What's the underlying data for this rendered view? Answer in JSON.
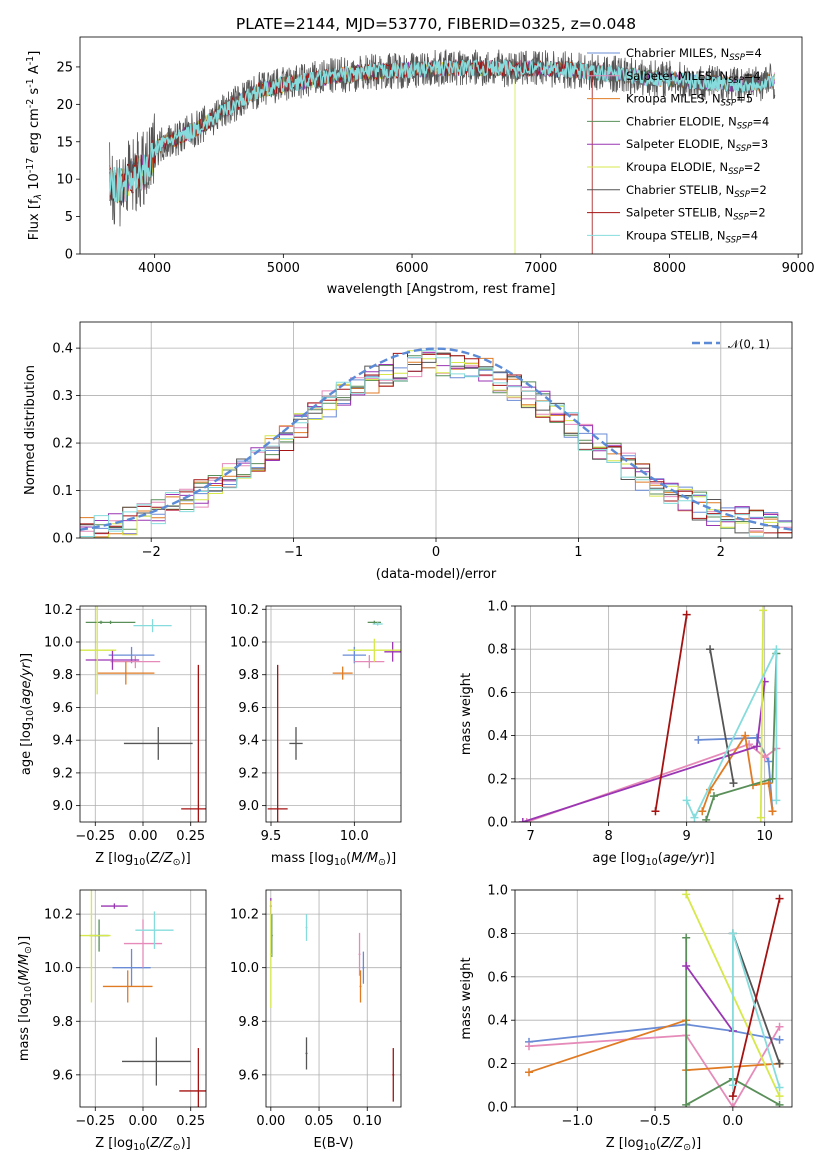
{
  "figure": {
    "title": "PLATE=2144, MJD=53770, FIBERID=0325, z=0.048",
    "colors": {
      "Chabrier MILES": "#6a8cd6",
      "Salpeter MILES": "#e68bb9",
      "Kroupa MILES": "#e07b24",
      "Chabrier ELODIE": "#5a8f5a",
      "Salpeter ELODIE": "#9a36b3",
      "Kroupa ELODIE": "#d6e84a",
      "Chabrier STELIB": "#555555",
      "Salpeter STELIB": "#a51212",
      "Kroupa STELIB": "#86dcdc"
    }
  },
  "chart_data": [
    {
      "id": "spectrum",
      "type": "line",
      "title": "PLATE=2144, MJD=53770, FIBERID=0325, z=0.048",
      "xlabel": "wavelength [Angstrom, rest frame]",
      "ylabel": "Flux [f_λ 10^-17 erg cm^-2 s^-1 A^-1]",
      "xlim": [
        3420,
        9030
      ],
      "ylim": [
        0,
        29
      ],
      "xticks": [
        4000,
        5000,
        6000,
        7000,
        8000,
        9000
      ],
      "yticks": [
        0,
        5,
        10,
        15,
        20,
        25
      ],
      "legend_position": "right",
      "legend": [
        {
          "name": "Chabrier MILES",
          "base": "Chabrier MILES, N",
          "sub": "SSP",
          "suffix": "=4"
        },
        {
          "name": "Salpeter MILES",
          "base": "Salpeter MILES, N",
          "sub": "SSP",
          "suffix": "=4"
        },
        {
          "name": "Kroupa MILES",
          "base": "Kroupa MILES, N",
          "sub": "SSP",
          "suffix": "=5"
        },
        {
          "name": "Chabrier ELODIE",
          "base": "Chabrier ELODIE, N",
          "sub": "SSP",
          "suffix": "=4"
        },
        {
          "name": "Salpeter ELODIE",
          "base": "Salpeter ELODIE, N",
          "sub": "SSP",
          "suffix": "=3"
        },
        {
          "name": "Kroupa ELODIE",
          "base": "Kroupa ELODIE, N",
          "sub": "SSP",
          "suffix": "=2"
        },
        {
          "name": "Chabrier STELIB",
          "base": "Chabrier STELIB, N",
          "sub": "SSP",
          "suffix": "=2"
        },
        {
          "name": "Salpeter STELIB",
          "base": "Salpeter STELIB, N",
          "sub": "SSP",
          "suffix": "=2"
        },
        {
          "name": "Kroupa STELIB",
          "base": "Kroupa STELIB, N",
          "sub": "SSP",
          "suffix": "=4"
        }
      ],
      "continuum": [
        [
          3650,
          9.5
        ],
        [
          3750,
          9.0
        ],
        [
          3850,
          10.8
        ],
        [
          3950,
          11.0
        ],
        [
          4000,
          14.0
        ],
        [
          4100,
          15.2
        ],
        [
          4200,
          15.6
        ],
        [
          4300,
          16.5
        ],
        [
          4400,
          17.5
        ],
        [
          4600,
          19.8
        ],
        [
          4800,
          21.8
        ],
        [
          5000,
          22.6
        ],
        [
          5200,
          23.2
        ],
        [
          5400,
          23.8
        ],
        [
          5600,
          24.2
        ],
        [
          5800,
          24.5
        ],
        [
          6000,
          24.6
        ],
        [
          6200,
          24.8
        ],
        [
          6400,
          24.9
        ],
        [
          6600,
          24.8
        ],
        [
          6800,
          24.8
        ],
        [
          7000,
          24.8
        ],
        [
          7200,
          24.6
        ],
        [
          7400,
          24.3
        ],
        [
          7600,
          24.0
        ],
        [
          7800,
          23.6
        ],
        [
          8000,
          23.4
        ],
        [
          8200,
          23.0
        ],
        [
          8400,
          22.8
        ],
        [
          8600,
          22.6
        ],
        [
          8800,
          23.2
        ]
      ],
      "wavelength_start": 3650,
      "wavelength_end": 8820,
      "truncations": [
        {
          "series": "Salpeter STELIB",
          "end": 7400
        },
        {
          "series": "Kroupa ELODIE",
          "end": 6800
        }
      ]
    },
    {
      "id": "residuals",
      "type": "histogram",
      "xlabel": "(data-model)/error",
      "ylabel": "Normed distribution",
      "xlim": [
        -2.5,
        2.5
      ],
      "ylim": [
        0,
        0.455
      ],
      "xticks": [
        -2,
        -1,
        0,
        1,
        2
      ],
      "yticks": [
        0.0,
        0.1,
        0.2,
        0.3,
        0.4
      ],
      "grid": true,
      "legend_position": "top-right",
      "legend_label": "𝒩(0, 1)",
      "reference_curve": "normal pdf, mean 0, sigma 1",
      "bin_width": 0.1
    },
    {
      "id": "age_vs_Z",
      "type": "errorbar",
      "xlabel": "Z [log10(Z/Z⊙)]",
      "ylabel": "age [log10(age/yr)]",
      "xlim": [
        -0.33,
        0.33
      ],
      "ylim": [
        8.9,
        10.22
      ],
      "xticks": [
        -0.25,
        0.0,
        0.25
      ],
      "yticks": [
        9.0,
        9.2,
        9.4,
        9.6,
        9.8,
        10.0,
        10.2
      ],
      "grid": true,
      "points": [
        {
          "series": "Chabrier MILES",
          "x": -0.06,
          "xerr": 0.12,
          "y": 9.92,
          "yerr": 0.05
        },
        {
          "series": "Salpeter MILES",
          "x": -0.04,
          "xerr": 0.13,
          "y": 9.88,
          "yerr": 0.04
        },
        {
          "series": "Kroupa MILES",
          "x": -0.09,
          "xerr": 0.15,
          "y": 9.81,
          "yerr": 0.07
        },
        {
          "series": "Chabrier ELODIE",
          "x": -0.17,
          "xerr": 0.13,
          "y": 10.12,
          "yerr": 0.01
        },
        {
          "series": "Salpeter ELODIE",
          "x": -0.16,
          "xerr": 0.14,
          "y": 9.89,
          "yerr": 0.06
        },
        {
          "series": "Kroupa ELODIE",
          "x": -0.24,
          "xerr": 0.1,
          "y": 9.95,
          "yerr": 0.27
        },
        {
          "series": "Chabrier STELIB",
          "x": 0.08,
          "xerr": 0.18,
          "y": 9.38,
          "yerr": 0.1
        },
        {
          "series": "Salpeter STELIB",
          "x": 0.29,
          "xerr": 0.09,
          "y": 8.98,
          "yerr": 0.88
        },
        {
          "series": "Kroupa STELIB",
          "x": 0.05,
          "xerr": 0.1,
          "y": 10.1,
          "yerr": 0.04
        },
        {
          "series": "Chabrier ELODIE",
          "x": -0.22,
          "xerr": 0.01,
          "y": 10.12,
          "yerr": 0.01
        }
      ]
    },
    {
      "id": "age_vs_mass",
      "type": "errorbar",
      "xlabel": "mass [log10(M/M⊙)]",
      "ylabel": "",
      "xlim": [
        9.47,
        10.28
      ],
      "ylim": [
        8.9,
        10.22
      ],
      "xticks": [
        9.5,
        10.0
      ],
      "yticks": [
        9.0,
        9.2,
        9.4,
        9.6,
        9.8,
        10.0,
        10.2
      ],
      "grid": true,
      "points": [
        {
          "series": "Chabrier MILES",
          "x": 10.0,
          "xerr": 0.07,
          "y": 9.92,
          "yerr": 0.05
        },
        {
          "series": "Salpeter MILES",
          "x": 10.09,
          "xerr": 0.09,
          "y": 9.88,
          "yerr": 0.04
        },
        {
          "series": "Kroupa MILES",
          "x": 9.93,
          "xerr": 0.06,
          "y": 9.81,
          "yerr": 0.04
        },
        {
          "series": "Chabrier ELODIE",
          "x": 10.12,
          "xerr": 0.04,
          "y": 10.12,
          "yerr": 0.01
        },
        {
          "series": "Salpeter ELODIE",
          "x": 10.23,
          "xerr": 0.05,
          "y": 9.94,
          "yerr": 0.06
        },
        {
          "series": "Kroupa ELODIE",
          "x": 10.12,
          "xerr": 0.16,
          "y": 9.95,
          "yerr": 0.07
        },
        {
          "series": "Chabrier STELIB",
          "x": 9.65,
          "xerr": 0.04,
          "y": 9.38,
          "yerr": 0.1
        },
        {
          "series": "Salpeter STELIB",
          "x": 9.54,
          "xerr": 0.06,
          "y": 8.98,
          "yerr": 0.88
        },
        {
          "series": "Kroupa STELIB",
          "x": 10.14,
          "xerr": 0.03,
          "y": 10.11,
          "yerr": 0.01
        }
      ]
    },
    {
      "id": "weight_vs_age",
      "type": "line",
      "xlabel": "age [log10(age/yr)]",
      "ylabel": "mass weight",
      "xlim": [
        6.8,
        10.35
      ],
      "ylim": [
        0,
        1.0
      ],
      "xticks": [
        7,
        8,
        9,
        10
      ],
      "yticks": [
        0.0,
        0.2,
        0.4,
        0.6,
        0.8,
        1.0
      ],
      "grid": true,
      "series": [
        {
          "name": "Chabrier MILES",
          "points": [
            [
              9.15,
              0.38
            ],
            [
              9.9,
              0.39
            ],
            [
              10.05,
              0.28
            ],
            [
              10.1,
              0.05
            ]
          ]
        },
        {
          "name": "Salpeter MILES",
          "points": [
            [
              6.95,
              0.0
            ],
            [
              9.8,
              0.36
            ],
            [
              10.0,
              0.3
            ],
            [
              10.15,
              0.34
            ]
          ]
        },
        {
          "name": "Kroupa MILES",
          "points": [
            [
              9.2,
              0.05
            ],
            [
              9.3,
              0.15
            ],
            [
              9.75,
              0.4
            ],
            [
              9.85,
              0.17
            ],
            [
              10.05,
              0.18
            ],
            [
              10.1,
              0.05
            ]
          ]
        },
        {
          "name": "Chabrier ELODIE",
          "points": [
            [
              9.25,
              0.01
            ],
            [
              9.35,
              0.12
            ],
            [
              10.1,
              0.2
            ],
            [
              10.15,
              0.78
            ]
          ]
        },
        {
          "name": "Salpeter ELODIE",
          "points": [
            [
              6.9,
              0.0
            ],
            [
              9.9,
              0.35
            ],
            [
              10.0,
              0.65
            ]
          ]
        },
        {
          "name": "Kroupa ELODIE",
          "points": [
            [
              9.95,
              0.02
            ],
            [
              9.98,
              0.98
            ]
          ]
        },
        {
          "name": "Chabrier STELIB",
          "points": [
            [
              9.3,
              0.8
            ],
            [
              9.6,
              0.18
            ]
          ]
        },
        {
          "name": "Salpeter STELIB",
          "points": [
            [
              8.6,
              0.05
            ],
            [
              9.0,
              0.96
            ]
          ]
        },
        {
          "name": "Kroupa STELIB",
          "points": [
            [
              9.0,
              0.1
            ],
            [
              9.1,
              0.02
            ],
            [
              10.15,
              0.8
            ],
            [
              10.15,
              0.1
            ]
          ]
        }
      ]
    },
    {
      "id": "mass_vs_Z",
      "type": "errorbar",
      "xlabel": "Z [log10(Z/Z⊙)]",
      "ylabel": "mass [log10(M/M⊙)]",
      "xlim": [
        -0.33,
        0.33
      ],
      "ylim": [
        9.48,
        10.29
      ],
      "xticks": [
        -0.25,
        0.0,
        0.25
      ],
      "yticks": [
        9.6,
        9.8,
        10.0,
        10.2
      ],
      "grid": true,
      "points": [
        {
          "series": "Chabrier MILES",
          "x": -0.06,
          "xerr": 0.1,
          "y": 10.0,
          "yerr": 0.07
        },
        {
          "series": "Salpeter MILES",
          "x": 0.0,
          "xerr": 0.1,
          "y": 10.09,
          "yerr": 0.09
        },
        {
          "series": "Kroupa MILES",
          "x": -0.08,
          "xerr": 0.13,
          "y": 9.93,
          "yerr": 0.06
        },
        {
          "series": "Chabrier ELODIE",
          "x": -0.23,
          "xerr": 0.05,
          "y": 10.12,
          "yerr": 0.06
        },
        {
          "series": "Salpeter ELODIE",
          "x": -0.15,
          "xerr": 0.07,
          "y": 10.23,
          "yerr": 0.01
        },
        {
          "series": "Kroupa ELODIE",
          "x": -0.27,
          "xerr": 0.1,
          "y": 10.12,
          "yerr": 0.25
        },
        {
          "series": "Chabrier STELIB",
          "x": 0.07,
          "xerr": 0.18,
          "y": 9.65,
          "yerr": 0.09
        },
        {
          "series": "Salpeter STELIB",
          "x": 0.29,
          "xerr": 0.1,
          "y": 9.54,
          "yerr": 0.16
        },
        {
          "series": "Kroupa STELIB",
          "x": 0.06,
          "xerr": 0.1,
          "y": 10.14,
          "yerr": 0.07
        }
      ]
    },
    {
      "id": "mass_vs_ebv",
      "type": "errorbar",
      "xlabel": "E(B-V)",
      "ylabel": "",
      "xlim": [
        -0.005,
        0.135
      ],
      "ylim": [
        9.48,
        10.29
      ],
      "xticks": [
        0.0,
        0.05,
        0.1
      ],
      "yticks": [
        9.6,
        9.8,
        10.0,
        10.2
      ],
      "grid": true,
      "points": [
        {
          "series": "Chabrier MILES",
          "x": 0.096,
          "xerr": 0.001,
          "y": 10.0,
          "yerr": 0.06
        },
        {
          "series": "Salpeter MILES",
          "x": 0.092,
          "xerr": 0.001,
          "y": 10.05,
          "yerr": 0.08
        },
        {
          "series": "Kroupa MILES",
          "x": 0.093,
          "xerr": 0.001,
          "y": 9.93,
          "yerr": 0.06
        },
        {
          "series": "Chabrier ELODIE",
          "x": 0.001,
          "xerr": 0.001,
          "y": 10.12,
          "yerr": 0.08
        },
        {
          "series": "Salpeter ELODIE",
          "x": 0.0,
          "xerr": 0.001,
          "y": 10.23,
          "yerr": 0.03
        },
        {
          "series": "Kroupa ELODIE",
          "x": 0.0,
          "xerr": 0.001,
          "y": 10.05,
          "yerr": 0.2
        },
        {
          "series": "Chabrier STELIB",
          "x": 0.037,
          "xerr": 0.001,
          "y": 9.68,
          "yerr": 0.06
        },
        {
          "series": "Salpeter STELIB",
          "x": 0.127,
          "xerr": 0.001,
          "y": 9.6,
          "yerr": 0.1
        },
        {
          "series": "Kroupa STELIB",
          "x": 0.037,
          "xerr": 0.001,
          "y": 10.15,
          "yerr": 0.05
        }
      ]
    },
    {
      "id": "weight_vs_Z",
      "type": "line",
      "xlabel": "Z [log10(Z/Z⊙)]",
      "ylabel": "mass weight",
      "xlim": [
        -1.4,
        0.38
      ],
      "ylim": [
        0,
        1.0
      ],
      "xticks": [
        -1.0,
        -0.5,
        0.0
      ],
      "yticks": [
        0.0,
        0.2,
        0.4,
        0.6,
        0.8,
        1.0
      ],
      "grid": true,
      "series": [
        {
          "name": "Chabrier MILES",
          "points": [
            [
              -1.31,
              0.3
            ],
            [
              -0.3,
              0.38
            ],
            [
              0.0,
              0.35
            ],
            [
              0.3,
              0.31
            ]
          ]
        },
        {
          "name": "Salpeter MILES",
          "points": [
            [
              -1.31,
              0.28
            ],
            [
              -0.3,
              0.33
            ],
            [
              0.0,
              0.0
            ],
            [
              0.3,
              0.37
            ]
          ]
        },
        {
          "name": "Kroupa MILES",
          "points": [
            [
              -1.31,
              0.16
            ],
            [
              -0.3,
              0.4
            ],
            [
              -0.3,
              0.17
            ],
            [
              0.3,
              0.2
            ]
          ]
        },
        {
          "name": "Chabrier ELODIE",
          "points": [
            [
              -0.3,
              0.78
            ],
            [
              -0.3,
              0.01
            ],
            [
              0.0,
              0.13
            ],
            [
              0.3,
              0.01
            ]
          ]
        },
        {
          "name": "Salpeter ELODIE",
          "points": [
            [
              -0.3,
              0.65
            ],
            [
              0.0,
              0.35
            ]
          ]
        },
        {
          "name": "Kroupa ELODIE",
          "points": [
            [
              -0.3,
              0.98
            ],
            [
              0.3,
              0.05
            ]
          ]
        },
        {
          "name": "Chabrier STELIB",
          "points": [
            [
              0.0,
              0.8
            ],
            [
              0.3,
              0.2
            ]
          ]
        },
        {
          "name": "Salpeter STELIB",
          "points": [
            [
              0.0,
              0.05
            ],
            [
              0.3,
              0.96
            ]
          ]
        },
        {
          "name": "Kroupa STELIB",
          "points": [
            [
              0.0,
              0.1
            ],
            [
              0.0,
              0.8
            ],
            [
              0.3,
              0.09
            ]
          ]
        }
      ]
    }
  ]
}
